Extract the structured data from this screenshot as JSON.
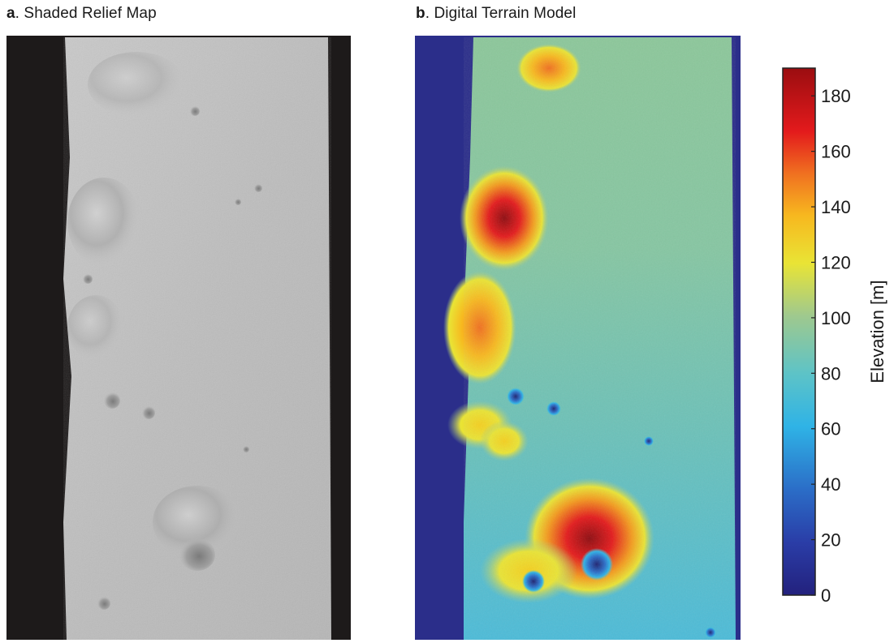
{
  "panels": {
    "a": {
      "letter": "a",
      "title": ". Shaded Relief Map"
    },
    "b": {
      "letter": "b",
      "title": ". Digital Terrain Model"
    }
  },
  "colorbar": {
    "label": "Elevation [m]",
    "min": 0,
    "max": 190,
    "ticks": [
      "0",
      "20",
      "40",
      "60",
      "80",
      "100",
      "120",
      "140",
      "160",
      "180"
    ],
    "colormap": [
      "#23217d",
      "#2a3da7",
      "#2b6dc7",
      "#2fb3e6",
      "#5dc3c7",
      "#9fc98e",
      "#e9e435",
      "#f7b81f",
      "#f07020",
      "#e31a1c",
      "#9b0d10"
    ]
  },
  "colors": {
    "background_dark": "#1d1a1a",
    "relief_gray": "#bcbcbc",
    "dtm_outside": "#2b2e8a"
  }
}
